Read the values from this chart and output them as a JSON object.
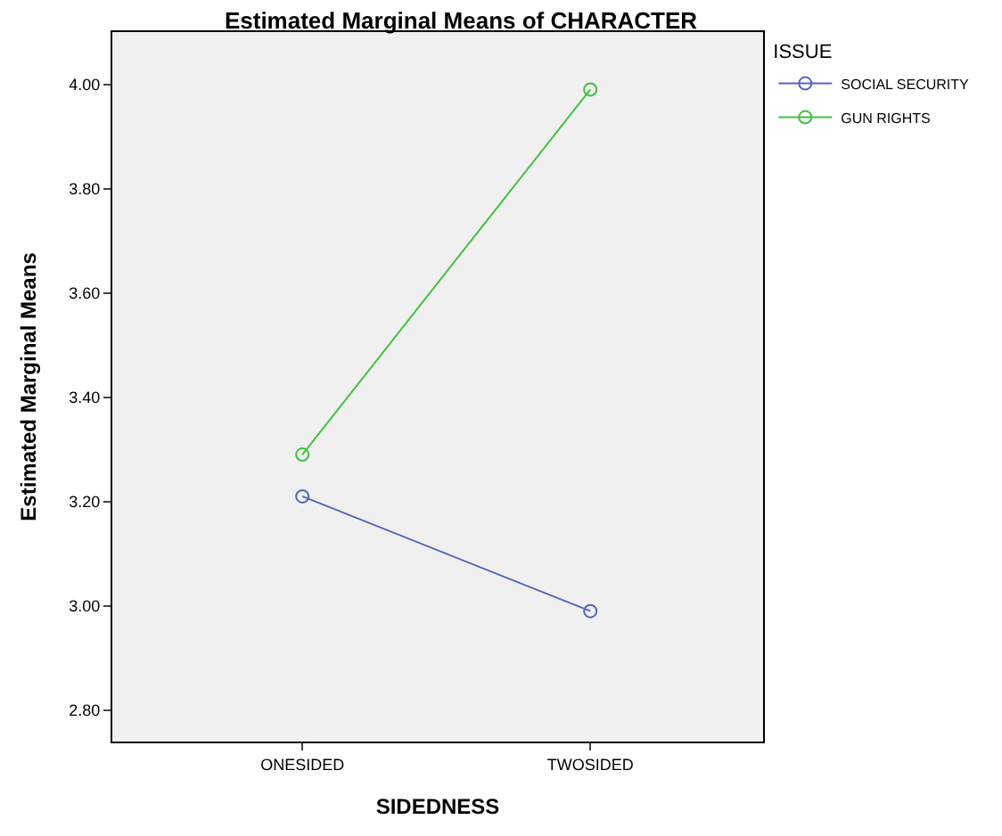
{
  "chart_data": {
    "type": "line",
    "title": "Estimated Marginal Means of CHARACTER",
    "xlabel": "SIDEDNESS",
    "ylabel": "Estimated Marginal Means",
    "legend_title": "ISSUE",
    "categories": [
      "ONESIDED",
      "TWOSIDED"
    ],
    "series": [
      {
        "name": "SOCIAL SECURITY",
        "color": "#5566bb",
        "values": [
          3.21,
          2.99
        ]
      },
      {
        "name": "GUN RIGHTS",
        "color": "#44c044",
        "values": [
          3.29,
          3.99
        ]
      }
    ],
    "ylim": [
      2.74,
      4.1
    ],
    "yticks": [
      {
        "value": 2.8,
        "label": "2.80"
      },
      {
        "value": 3.0,
        "label": "3.00"
      },
      {
        "value": 3.2,
        "label": "3.20"
      },
      {
        "value": 3.4,
        "label": "3.40"
      },
      {
        "value": 3.6,
        "label": "3.60"
      },
      {
        "value": 3.8,
        "label": "3.80"
      },
      {
        "value": 4.0,
        "label": "4.00"
      }
    ],
    "legend": "top right",
    "marker": "circle",
    "line_style": "solid",
    "grid": false
  }
}
